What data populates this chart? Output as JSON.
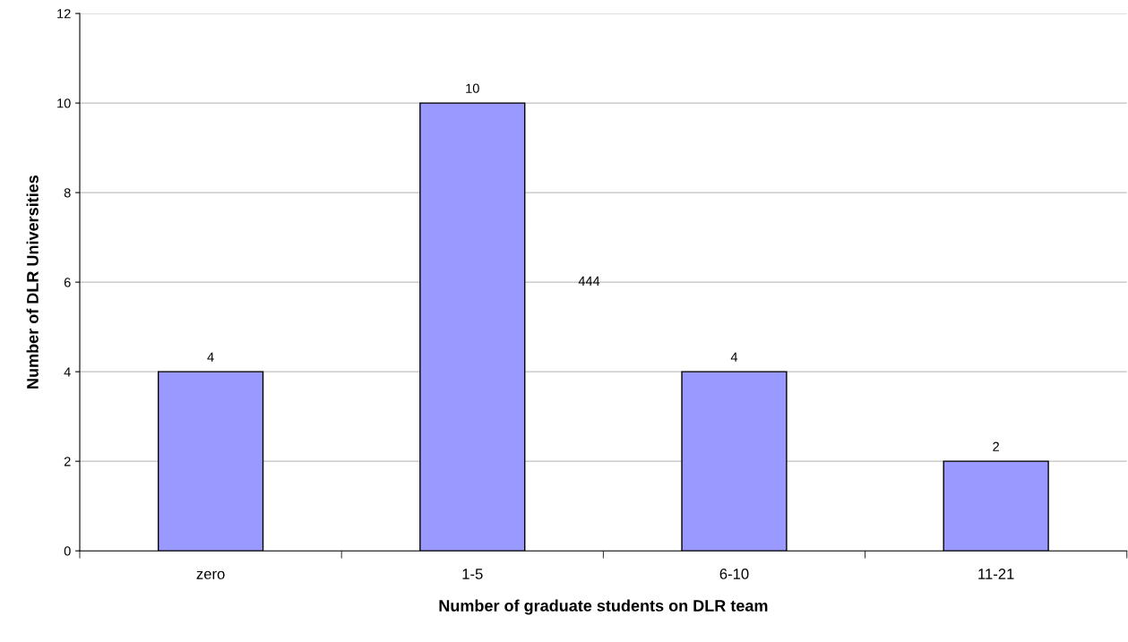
{
  "chart_data": {
    "type": "bar",
    "xlabel": "Number of graduate students on DLR team",
    "ylabel": "Number of DLR Universities",
    "categories": [
      "zero",
      "1-5",
      "6-10",
      "11-21"
    ],
    "values": [
      4,
      10,
      4,
      2
    ],
    "color": "#9999ff",
    "ylim": [
      0,
      12
    ],
    "yticks": [
      0,
      2,
      4,
      6,
      8,
      10,
      12
    ],
    "grid": "y",
    "data_labels": true,
    "annotations": [
      "444"
    ]
  }
}
